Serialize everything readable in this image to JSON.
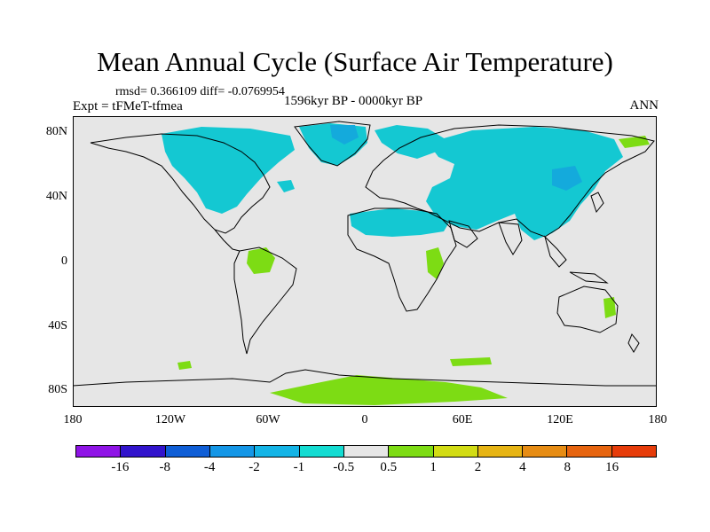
{
  "title": "Mean Annual Cycle (Surface Air Temperature)",
  "stats": "rmsd= 0.366109 diff= -0.0769954",
  "experiment": "Expt = tFMeT-tfmea",
  "period": "1596kyr BP - 0000kyr BP",
  "season": "ANN",
  "y_ticks": [
    "80N",
    "40N",
    "0",
    "40S",
    "80S"
  ],
  "x_ticks": [
    "180",
    "120W",
    "60W",
    "0",
    "60E",
    "120E",
    "180"
  ],
  "colorbar": {
    "colors": [
      "#8f14e6",
      "#3214cc",
      "#0f5ed6",
      "#1496e6",
      "#14b4e6",
      "#14dcd2",
      "#e6e6e6",
      "#7ddc14",
      "#d2dc14",
      "#e6b414",
      "#e68c14",
      "#e6640f",
      "#e63c0a"
    ],
    "labels": [
      "-16",
      "-8",
      "-4",
      "-2",
      "-1",
      "-0.5",
      "0.5",
      "1",
      "2",
      "4",
      "8",
      "16"
    ]
  },
  "map_colors": {
    "background": "#e6e6e6",
    "cool": "#14c8d2",
    "cool_strong": "#14aadc",
    "warm": "#7ddc14"
  }
}
